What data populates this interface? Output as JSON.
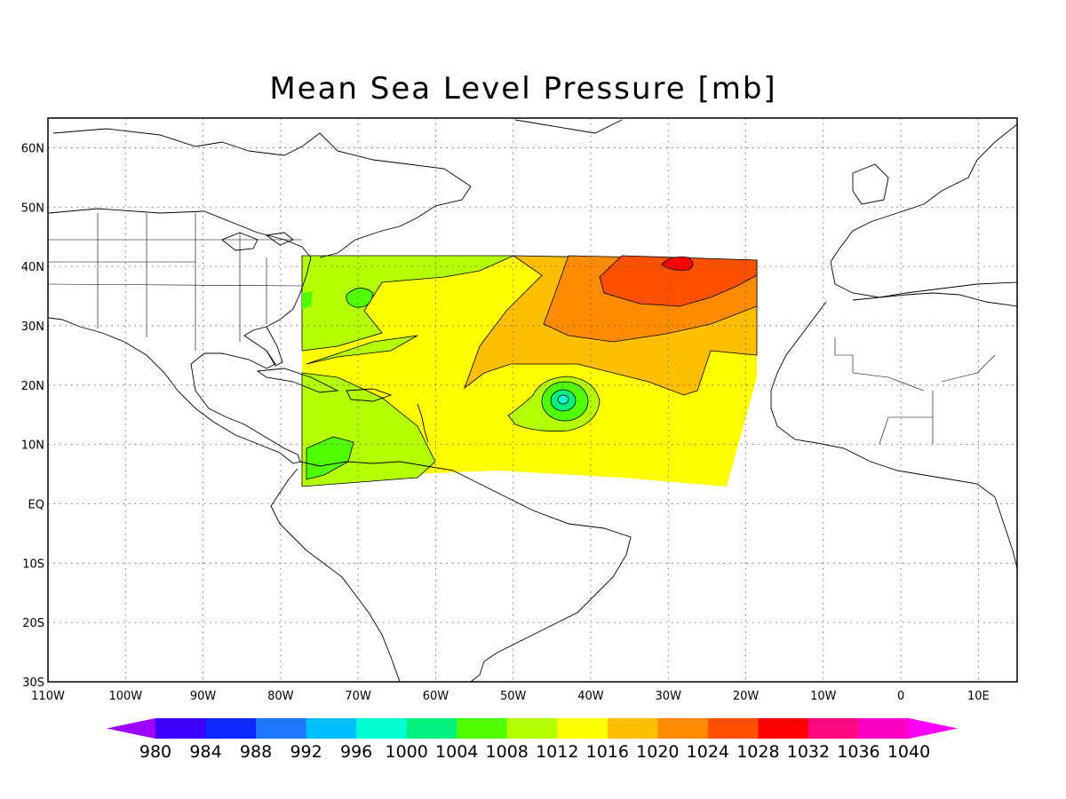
{
  "title": "Mean Sea Level Pressure [mb]",
  "map": {
    "lon_range": [
      -110,
      15
    ],
    "lat_range": [
      -30,
      65
    ],
    "lon_ticks": [
      {
        "value": -110,
        "label": "110W"
      },
      {
        "value": -100,
        "label": "100W"
      },
      {
        "value": -90,
        "label": "90W"
      },
      {
        "value": -80,
        "label": "80W"
      },
      {
        "value": -70,
        "label": "70W"
      },
      {
        "value": -60,
        "label": "60W"
      },
      {
        "value": -50,
        "label": "50W"
      },
      {
        "value": -40,
        "label": "40W"
      },
      {
        "value": -30,
        "label": "30W"
      },
      {
        "value": -20,
        "label": "20W"
      },
      {
        "value": -10,
        "label": "10W"
      },
      {
        "value": 0,
        "label": "0"
      },
      {
        "value": 10,
        "label": "10E"
      }
    ],
    "lat_ticks": [
      {
        "value": 60,
        "label": "60N"
      },
      {
        "value": 50,
        "label": "50N"
      },
      {
        "value": 40,
        "label": "40N"
      },
      {
        "value": 30,
        "label": "30N"
      },
      {
        "value": 20,
        "label": "20N"
      },
      {
        "value": 10,
        "label": "10N"
      },
      {
        "value": 0,
        "label": "EQ"
      },
      {
        "value": -10,
        "label": "10S"
      },
      {
        "value": -20,
        "label": "20S"
      },
      {
        "value": -30,
        "label": "30S"
      }
    ],
    "grid": "dotted",
    "data_domain": {
      "lon": [
        -77,
        -18
      ],
      "lat": [
        3,
        42
      ]
    }
  },
  "colorbar": {
    "levels": [
      "980",
      "984",
      "988",
      "992",
      "996",
      "1000",
      "1004",
      "1008",
      "1012",
      "1016",
      "1020",
      "1024",
      "1028",
      "1032",
      "1036",
      "1040"
    ],
    "colors": [
      "#9c00ff",
      "#3c00ff",
      "#0a28ff",
      "#1e78ff",
      "#00bfff",
      "#00ffd2",
      "#00f07f",
      "#50ff00",
      "#b4ff00",
      "#ffff00",
      "#ffbf00",
      "#ff8c00",
      "#ff5000",
      "#ff0000",
      "#ff0a82",
      "#ff00c8",
      "#ff00ff"
    ]
  }
}
